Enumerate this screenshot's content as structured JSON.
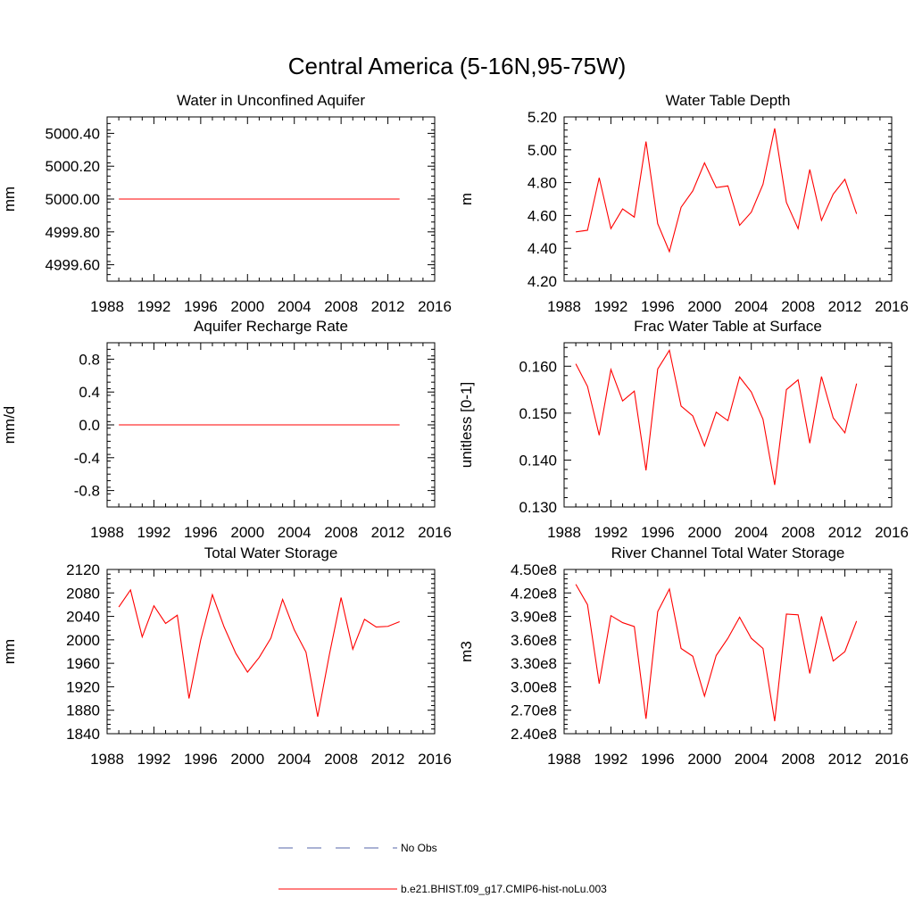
{
  "figure": {
    "title": "Central America (5-16N,95-75W)"
  },
  "legend": {
    "entries": [
      {
        "label": "No Obs",
        "style": "dashed",
        "color": "#5566aa"
      },
      {
        "label": "b.e21.BHIST.f09_g17.CMIP6-hist-noLu.003",
        "style": "solid",
        "color": "#ff0000"
      }
    ]
  },
  "chart_data": [
    {
      "type": "line",
      "title": "Water in Unconfined Aquifer",
      "xlabel": "",
      "ylabel": "mm",
      "xlim": [
        1988,
        2016
      ],
      "xticks": [
        1988,
        1992,
        1996,
        2000,
        2004,
        2008,
        2012,
        2016
      ],
      "ylim": [
        4999.5,
        5000.5
      ],
      "yticks": [
        4999.6,
        4999.8,
        5000.0,
        5000.2,
        5000.4
      ],
      "ytick_labels": [
        "4999.60",
        "4999.80",
        "5000.00",
        "5000.20",
        "5000.40"
      ],
      "series": [
        {
          "color": "#ff0000",
          "x": [
            1989,
            1990,
            1991,
            1992,
            1993,
            1994,
            1995,
            1996,
            1997,
            1998,
            1999,
            2000,
            2001,
            2002,
            2003,
            2004,
            2005,
            2006,
            2007,
            2008,
            2009,
            2010,
            2011,
            2012,
            2013
          ],
          "values": [
            5000,
            5000,
            5000,
            5000,
            5000,
            5000,
            5000,
            5000,
            5000,
            5000,
            5000,
            5000,
            5000,
            5000,
            5000,
            5000,
            5000,
            5000,
            5000,
            5000,
            5000,
            5000,
            5000,
            5000,
            5000
          ]
        }
      ]
    },
    {
      "type": "line",
      "title": "Water Table Depth",
      "xlabel": "",
      "ylabel": "m",
      "xlim": [
        1988,
        2016
      ],
      "xticks": [
        1988,
        1992,
        1996,
        2000,
        2004,
        2008,
        2012,
        2016
      ],
      "ylim": [
        4.2,
        5.2
      ],
      "yticks": [
        4.2,
        4.4,
        4.6,
        4.8,
        5.0,
        5.2
      ],
      "ytick_labels": [
        "4.20",
        "4.40",
        "4.60",
        "4.80",
        "5.00",
        "5.20"
      ],
      "series": [
        {
          "color": "#ff0000",
          "x": [
            1989,
            1990,
            1991,
            1992,
            1993,
            1994,
            1995,
            1996,
            1997,
            1998,
            1999,
            2000,
            2001,
            2002,
            2003,
            2004,
            2005,
            2006,
            2007,
            2008,
            2009,
            2010,
            2011,
            2012,
            2013
          ],
          "values": [
            4.5,
            4.51,
            4.83,
            4.52,
            4.64,
            4.59,
            5.05,
            4.55,
            4.38,
            4.65,
            4.75,
            4.92,
            4.77,
            4.78,
            4.54,
            4.62,
            4.79,
            5.13,
            4.68,
            4.52,
            4.88,
            4.57,
            4.73,
            4.82,
            4.61
          ]
        }
      ]
    },
    {
      "type": "line",
      "title": "Aquifer Recharge Rate",
      "xlabel": "",
      "ylabel": "mm/d",
      "xlim": [
        1988,
        2016
      ],
      "xticks": [
        1988,
        1992,
        1996,
        2000,
        2004,
        2008,
        2012,
        2016
      ],
      "ylim": [
        -1.0,
        1.0
      ],
      "yticks": [
        -0.8,
        -0.4,
        0.0,
        0.4,
        0.8
      ],
      "ytick_labels": [
        "-0.8",
        "-0.4",
        "0.0",
        "0.4",
        "0.8"
      ],
      "series": [
        {
          "color": "#ff0000",
          "x": [
            1989,
            1990,
            1991,
            1992,
            1993,
            1994,
            1995,
            1996,
            1997,
            1998,
            1999,
            2000,
            2001,
            2002,
            2003,
            2004,
            2005,
            2006,
            2007,
            2008,
            2009,
            2010,
            2011,
            2012,
            2013
          ],
          "values": [
            0,
            0,
            0,
            0,
            0,
            0,
            0,
            0,
            0,
            0,
            0,
            0,
            0,
            0,
            0,
            0,
            0,
            0,
            0,
            0,
            0,
            0,
            0,
            0,
            0
          ]
        }
      ]
    },
    {
      "type": "line",
      "title": "Frac Water Table at Surface",
      "xlabel": "",
      "ylabel": "unitless [0-1]",
      "xlim": [
        1988,
        2016
      ],
      "xticks": [
        1988,
        1992,
        1996,
        2000,
        2004,
        2008,
        2012,
        2016
      ],
      "ylim": [
        0.13,
        0.165
      ],
      "yticks": [
        0.13,
        0.14,
        0.15,
        0.16
      ],
      "ytick_labels": [
        "0.130",
        "0.140",
        "0.150",
        "0.160"
      ],
      "series": [
        {
          "color": "#ff0000",
          "x": [
            1989,
            1990,
            1991,
            1992,
            1993,
            1994,
            1995,
            1996,
            1997,
            1998,
            1999,
            2000,
            2001,
            2002,
            2003,
            2004,
            2005,
            2006,
            2007,
            2008,
            2009,
            2010,
            2011,
            2012,
            2013
          ],
          "values": [
            0.1605,
            0.1557,
            0.1453,
            0.1593,
            0.1526,
            0.1547,
            0.1378,
            0.1594,
            0.1634,
            0.1515,
            0.1494,
            0.143,
            0.1502,
            0.1484,
            0.1577,
            0.1545,
            0.1487,
            0.1347,
            0.155,
            0.1571,
            0.1436,
            0.1578,
            0.149,
            0.1458,
            0.1563
          ]
        }
      ]
    },
    {
      "type": "line",
      "title": "Total Water Storage",
      "xlabel": "",
      "ylabel": "mm",
      "xlim": [
        1988,
        2016
      ],
      "xticks": [
        1988,
        1992,
        1996,
        2000,
        2004,
        2008,
        2012,
        2016
      ],
      "ylim": [
        1840,
        2120
      ],
      "yticks": [
        1840,
        1880,
        1920,
        1960,
        2000,
        2040,
        2080,
        2120
      ],
      "ytick_labels": [
        "1840",
        "1880",
        "1920",
        "1960",
        "2000",
        "2040",
        "2080",
        "2120"
      ],
      "series": [
        {
          "color": "#ff0000",
          "x": [
            1989,
            1990,
            1991,
            1992,
            1993,
            1994,
            1995,
            1996,
            1997,
            1998,
            1999,
            2000,
            2001,
            2002,
            2003,
            2004,
            2005,
            2006,
            2007,
            2008,
            2009,
            2010,
            2011,
            2012,
            2013
          ],
          "values": [
            2056,
            2085,
            2005,
            2058,
            2028,
            2042,
            1900,
            2000,
            2077,
            2022,
            1977,
            1945,
            1970,
            2003,
            2069,
            2017,
            1979,
            1869,
            1975,
            2072,
            1984,
            2035,
            2022,
            2023,
            2031
          ]
        }
      ]
    },
    {
      "type": "line",
      "title": "River Channel Total Water Storage",
      "xlabel": "",
      "ylabel": "m3",
      "xlim": [
        1988,
        2016
      ],
      "xticks": [
        1988,
        1992,
        1996,
        2000,
        2004,
        2008,
        2012,
        2016
      ],
      "ylim": [
        240000000,
        450000000
      ],
      "yticks": [
        240000000,
        270000000,
        300000000,
        330000000,
        360000000,
        390000000,
        420000000,
        450000000
      ],
      "ytick_labels": [
        "2.40e8",
        "2.70e8",
        "3.00e8",
        "3.30e8",
        "3.60e8",
        "3.90e8",
        "4.20e8",
        "4.50e8"
      ],
      "series": [
        {
          "color": "#ff0000",
          "x": [
            1989,
            1990,
            1991,
            1992,
            1993,
            1994,
            1995,
            1996,
            1997,
            1998,
            1999,
            2000,
            2001,
            2002,
            2003,
            2004,
            2005,
            2006,
            2007,
            2008,
            2009,
            2010,
            2011,
            2012,
            2013
          ],
          "values": [
            431000000,
            405000000,
            304000000,
            391000000,
            382000000,
            377000000,
            259000000,
            396000000,
            425000000,
            349000000,
            339000000,
            288000000,
            340000000,
            362000000,
            389000000,
            362000000,
            349000000,
            256000000,
            393000000,
            392000000,
            317000000,
            390000000,
            333000000,
            345000000,
            384000000
          ]
        }
      ]
    }
  ]
}
